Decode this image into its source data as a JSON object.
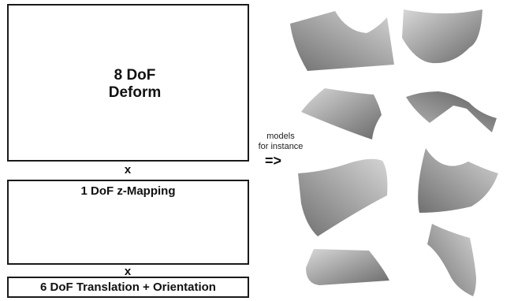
{
  "deform_box": {
    "title_line1": "8 DoF",
    "title_line2": "Deform"
  },
  "operator_times": "x",
  "zmapping_box": {
    "title": "1 DoF z-Mapping"
  },
  "translation_box": {
    "title": "6 DoF Translation + Orientation"
  },
  "models_note": {
    "line1": "models",
    "line2": "for instance",
    "arrow": "=>"
  },
  "colors": {
    "surface_light": "#cfcfcf",
    "surface_dark": "#6e6e6e",
    "arrow_gray": "#b5b5b5",
    "border": "#1a1a1a"
  }
}
